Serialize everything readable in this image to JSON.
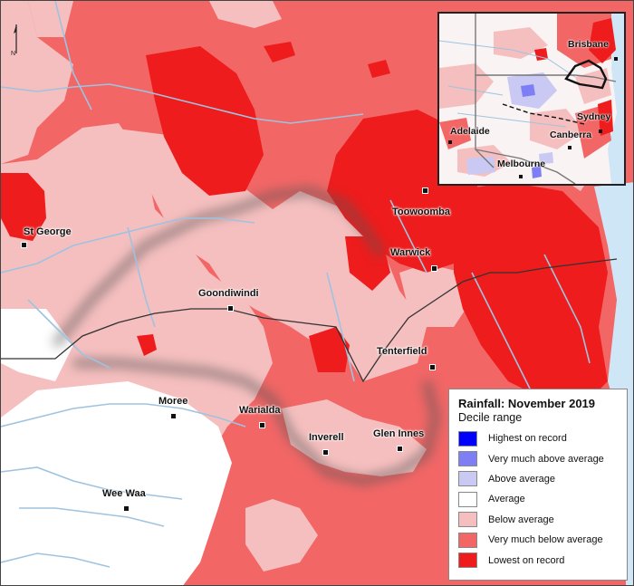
{
  "legend": {
    "title": "Rainfall: November 2019",
    "subtitle": "Decile range",
    "items": [
      {
        "label": "Highest on record",
        "color": "#0000ff"
      },
      {
        "label": "Very much above average",
        "color": "#7f7ff5"
      },
      {
        "label": "Above average",
        "color": "#c9c9f3"
      },
      {
        "label": "Average",
        "color": "#ffffff"
      },
      {
        "label": "Below average",
        "color": "#f6bfbf"
      },
      {
        "label": "Very much below average",
        "color": "#f26666"
      },
      {
        "label": "Lowest on record",
        "color": "#ee1c1c"
      }
    ]
  },
  "north_arrow": {
    "label": "N"
  },
  "towns": [
    {
      "name": "Toowoomba"
    },
    {
      "name": "St George"
    },
    {
      "name": "Warwick"
    },
    {
      "name": "Goondiwindi"
    },
    {
      "name": "Tenterfield"
    },
    {
      "name": "Moree"
    },
    {
      "name": "Warialda"
    },
    {
      "name": "Inverell"
    },
    {
      "name": "Glen Innes"
    },
    {
      "name": "Wee Waa"
    }
  ],
  "inset": {
    "towns": [
      {
        "name": "Brisbane"
      },
      {
        "name": "Sydney"
      },
      {
        "name": "Adelaide"
      },
      {
        "name": "Canberra"
      },
      {
        "name": "Melbourne"
      }
    ]
  }
}
